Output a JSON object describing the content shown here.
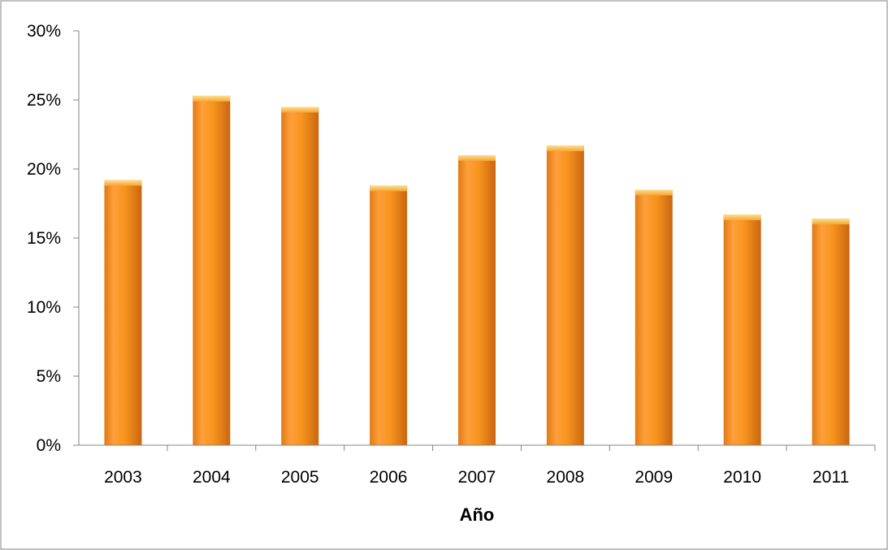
{
  "chart_data": {
    "type": "bar",
    "title": "",
    "xlabel": "Año",
    "ylabel": "",
    "categories": [
      "2003",
      "2004",
      "2005",
      "2006",
      "2007",
      "2008",
      "2009",
      "2010",
      "2011"
    ],
    "series": [
      {
        "values": [
          19.2,
          25.3,
          24.5,
          18.8,
          21.0,
          21.7,
          18.5,
          16.7,
          16.4
        ]
      }
    ],
    "yticks": [
      "0%",
      "5%",
      "10%",
      "15%",
      "20%",
      "25%",
      "30%"
    ],
    "ylim": [
      0,
      30
    ],
    "grid": false,
    "legend": "none",
    "colors": {
      "bar": "#f7941d",
      "bar_light": "#ffb347",
      "bar_dark": "#d9731a",
      "axis": "#868686",
      "frame": "#868686"
    }
  }
}
